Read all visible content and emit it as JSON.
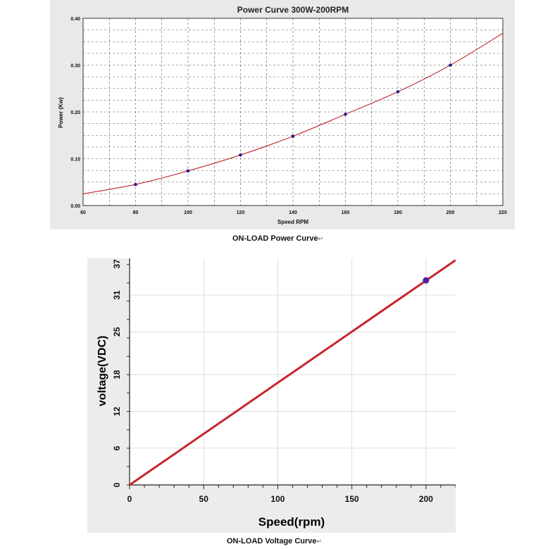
{
  "chart_data": [
    {
      "type": "line",
      "title": "Power Curve 300W-200RPM",
      "xlabel": "Speed RPM",
      "ylabel": "Power (Kw)",
      "xlim": [
        60,
        220
      ],
      "ylim": [
        0,
        0.4
      ],
      "x_ticks": [
        "60",
        "80",
        "100",
        "120",
        "140",
        "160",
        "180",
        "200",
        "220"
      ],
      "y_ticks": [
        "0.00",
        "0.10",
        "0.20",
        "0.30",
        "0.40"
      ],
      "grid": true,
      "series": [
        {
          "x": [
            80,
            100,
            120,
            140,
            160,
            180,
            200
          ],
          "y": [
            0.045,
            0.074,
            0.108,
            0.148,
            0.195,
            0.243,
            0.3
          ],
          "curve_end": [
            220,
            0.368
          ],
          "curve_start": [
            60,
            0.025
          ],
          "line_color": "#c0272d",
          "marker_color": "#2a1a8a"
        }
      ],
      "caption": "ON-LOAD Power Curve"
    },
    {
      "type": "line",
      "title": "",
      "xlabel": "Speed(rpm)",
      "ylabel": "voltage(VDC)",
      "xlim": [
        0,
        220
      ],
      "ylim": [
        0,
        37
      ],
      "x_ticks": [
        "0",
        "50",
        "100",
        "150",
        "200"
      ],
      "y_ticks": [
        "0",
        "6",
        "12",
        "18",
        "25",
        "31",
        "37"
      ],
      "grid": true,
      "series": [
        {
          "x": [
            0,
            200,
            220
          ],
          "y": [
            0,
            33.4,
            36.7
          ],
          "marker_x": 200,
          "marker_y": 33.4,
          "line_color": "#c8262c",
          "marker_color": "#4a1fa0"
        }
      ],
      "caption": "ON-LOAD Voltage Curve"
    }
  ]
}
